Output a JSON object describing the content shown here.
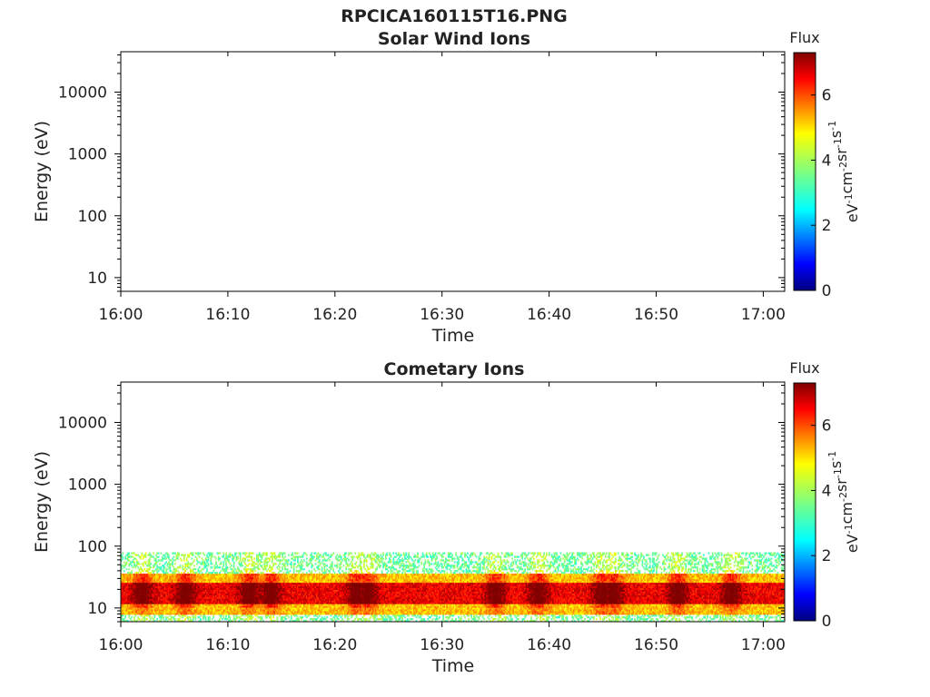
{
  "figure": {
    "file_title": "RPCICA160115T16.PNG"
  },
  "colorbar": {
    "label": "Flux",
    "unit_label_parts": [
      "eV",
      "-1",
      "cm",
      "-2",
      "sr",
      "-1",
      "s",
      "-1"
    ],
    "ticks": [
      "0",
      "2",
      "4",
      "6"
    ],
    "range": [
      0,
      7.3
    ],
    "colormap": "jet"
  },
  "chart_data": [
    {
      "type": "heatmap",
      "title": "Solar Wind Ions",
      "xlabel": "Time",
      "ylabel": "Energy (eV)",
      "x_ticks": [
        "16:00",
        "16:10",
        "16:20",
        "16:30",
        "16:40",
        "16:50",
        "17:00"
      ],
      "y_ticks": [
        "10",
        "100",
        "1000",
        "10000"
      ],
      "y_scale": "log",
      "xlim": [
        "16:00",
        "17:02"
      ],
      "ylim": [
        6,
        45000
      ],
      "bands": []
    },
    {
      "type": "heatmap",
      "title": "Cometary Ions",
      "xlabel": "Time",
      "ylabel": "Energy (eV)",
      "x_ticks": [
        "16:00",
        "16:10",
        "16:20",
        "16:30",
        "16:40",
        "16:50",
        "17:00"
      ],
      "y_ticks": [
        "10",
        "100",
        "1000",
        "10000"
      ],
      "y_scale": "log",
      "xlim": [
        "16:00",
        "17:02"
      ],
      "ylim": [
        6,
        45000
      ],
      "bands": [
        {
          "energy_min_eV": 6,
          "energy_max_eV": 80,
          "flux_min": 3,
          "flux_max": 4
        },
        {
          "energy_min_eV": 8,
          "energy_max_eV": 35,
          "flux_min": 4.5,
          "flux_max": 5.5
        },
        {
          "energy_min_eV": 12,
          "energy_max_eV": 25,
          "flux_min": 6,
          "flux_max": 7
        }
      ],
      "peak_times": [
        "16:02",
        "16:06",
        "16:12",
        "16:14",
        "16:22",
        "16:23",
        "16:35",
        "16:39",
        "16:45",
        "16:46",
        "16:52",
        "16:57"
      ]
    }
  ]
}
